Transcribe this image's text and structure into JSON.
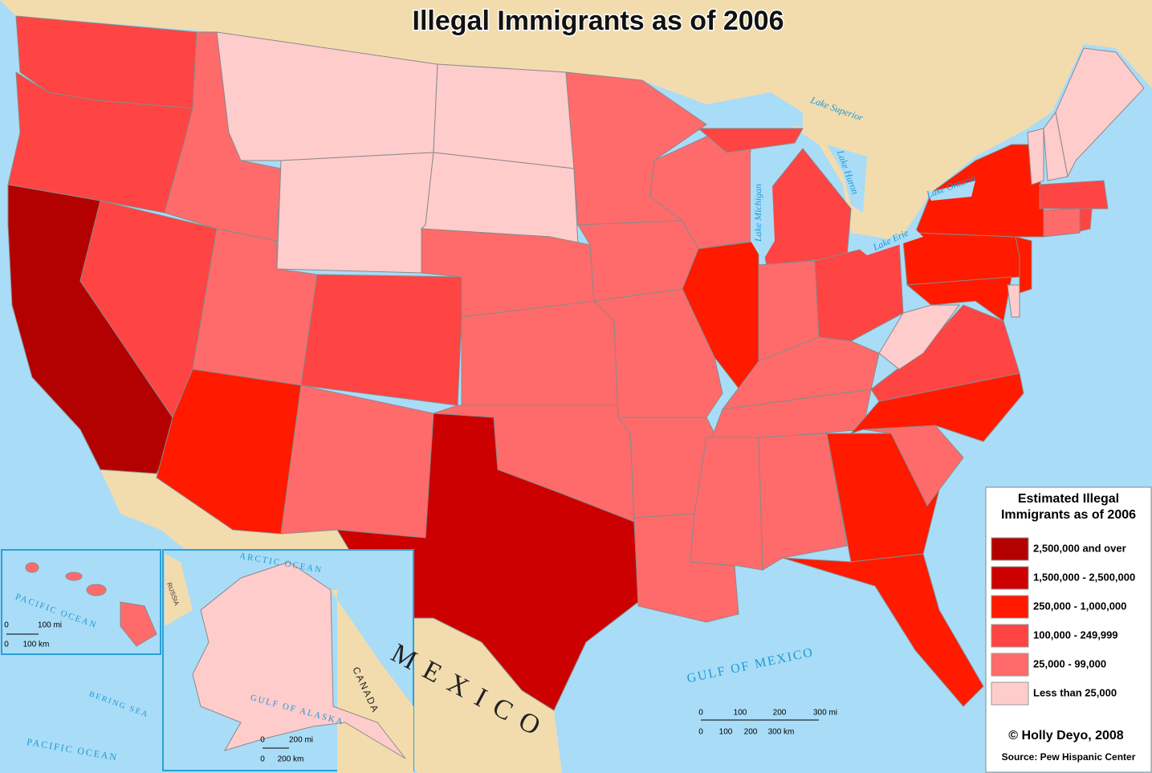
{
  "title": "Illegal Immigrants as of 2006",
  "legend": {
    "title": [
      "Estimated Illegal",
      "Immigrants as of 2006"
    ],
    "items": [
      {
        "label": "2,500,000 and over",
        "color": "#b30000"
      },
      {
        "label": "1,500,000 - 2,500,000",
        "color": "#cc0000"
      },
      {
        "label": "250,000 - 1,000,000",
        "color": "#ff1a00"
      },
      {
        "label": "100,000 - 249,999",
        "color": "#ff4444"
      },
      {
        "label": "25,000 - 99,000",
        "color": "#ff6b6b"
      },
      {
        "label": "Less than 25,000",
        "color": "#ffcccc"
      }
    ]
  },
  "map_labels": {
    "lake_superior": "Lake Superior",
    "lake_michigan": "Lake Michigan",
    "lake_huron": "Lake Huron",
    "lake_ontario": "Lake Ontario",
    "lake_erie": "Lake Erie",
    "gulf_of_mexico": "GULF OF MEXICO",
    "mexico": "MEXICO",
    "canada": "CANADA",
    "pacific_ocean_hawaii": "PACIFIC OCEAN",
    "pacific_ocean_alaska": "PACIFIC OCEAN",
    "arctic_ocean": "ARCTIC OCEAN",
    "bering_sea": "BERING SEA",
    "gulf_of_alaska": "GULF OF ALASKA",
    "russia": "RUSSIA"
  },
  "scale_bars": {
    "main": {
      "miles": [
        "0",
        "100",
        "200",
        "300 mi"
      ],
      "km": [
        "0",
        "100",
        "200",
        "300 km"
      ]
    },
    "hawaii": {
      "miles": [
        "0",
        "100 mi"
      ],
      "km": [
        "0",
        "100 km"
      ]
    },
    "alaska": {
      "miles": [
        "0",
        "200 mi"
      ],
      "km": [
        "0",
        "200 km"
      ]
    }
  },
  "credit": "© Holly Deyo, 2008",
  "source": "Source: Pew Hispanic Center"
}
